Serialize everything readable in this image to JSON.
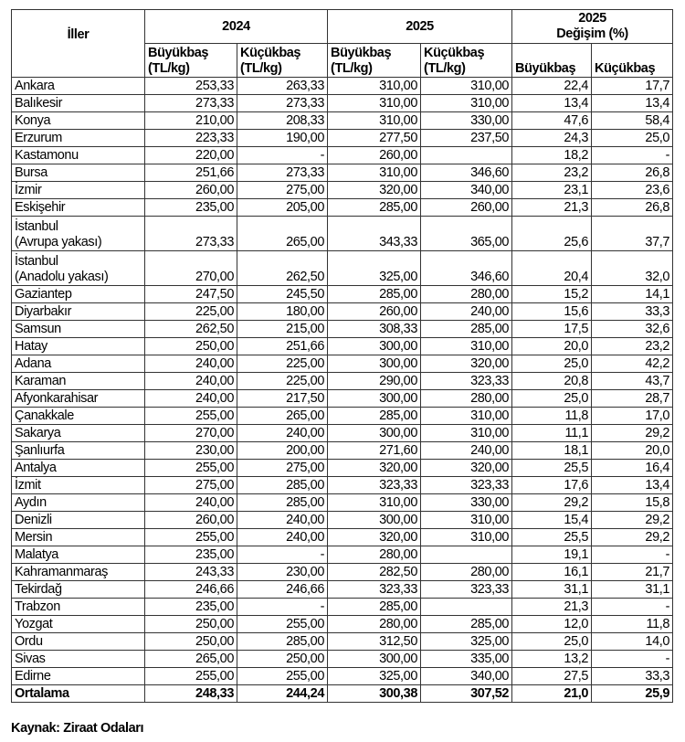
{
  "header": {
    "col_province": "İller",
    "group_2024": "2024",
    "group_2025": "2025",
    "group_change_line1": "2025",
    "group_change_line2": "Değişim (%)",
    "sub_cattle_2024": "Büyükbaş (TL/kg)",
    "sub_sheep_2024": "Küçükbaş (TL/kg)",
    "sub_cattle_2025": "Büyükbaş (TL/kg)",
    "sub_sheep_2025": "Küçükbaş (TL/kg)",
    "sub_cattle_change": "Büyükbaş",
    "sub_sheep_change": "Küçükbaş"
  },
  "rows": [
    [
      "Ankara",
      "253,33",
      "263,33",
      "310,00",
      "310,00",
      "22,4",
      "17,7"
    ],
    [
      "Balıkesir",
      "273,33",
      "273,33",
      "310,00",
      "310,00",
      "13,4",
      "13,4"
    ],
    [
      "Konya",
      "210,00",
      "208,33",
      "310,00",
      "330,00",
      "47,6",
      "58,4"
    ],
    [
      "Erzurum",
      "223,33",
      "190,00",
      "277,50",
      "237,50",
      "24,3",
      "25,0"
    ],
    [
      "Kastamonu",
      "220,00",
      "-",
      "260,00",
      "",
      "18,2",
      "-"
    ],
    [
      "Bursa",
      "251,66",
      "273,33",
      "310,00",
      "346,60",
      "23,2",
      "26,8"
    ],
    [
      "İzmir",
      "260,00",
      "275,00",
      "320,00",
      "340,00",
      "23,1",
      "23,6"
    ],
    [
      "Eskişehir",
      "235,00",
      "205,00",
      "285,00",
      "260,00",
      "21,3",
      "26,8"
    ],
    [
      "İstanbul (Avrupa yakası)",
      "273,33",
      "265,00",
      "343,33",
      "365,00",
      "25,6",
      "37,7"
    ],
    [
      "İstanbul (Anadolu yakası)",
      "270,00",
      "262,50",
      "325,00",
      "346,60",
      "20,4",
      "32,0"
    ],
    [
      "Gaziantep",
      "247,50",
      "245,50",
      "285,00",
      "280,00",
      "15,2",
      "14,1"
    ],
    [
      "Diyarbakır",
      "225,00",
      "180,00",
      "260,00",
      "240,00",
      "15,6",
      "33,3"
    ],
    [
      "Samsun",
      "262,50",
      "215,00",
      "308,33",
      "285,00",
      "17,5",
      "32,6"
    ],
    [
      "Hatay",
      "250,00",
      "251,66",
      "300,00",
      "310,00",
      "20,0",
      "23,2"
    ],
    [
      "Adana",
      "240,00",
      "225,00",
      "300,00",
      "320,00",
      "25,0",
      "42,2"
    ],
    [
      "Karaman",
      "240,00",
      "225,00",
      "290,00",
      "323,33",
      "20,8",
      "43,7"
    ],
    [
      "Afyonkarahisar",
      "240,00",
      "217,50",
      "300,00",
      "280,00",
      "25,0",
      "28,7"
    ],
    [
      "Çanakkale",
      "255,00",
      "265,00",
      "285,00",
      "310,00",
      "11,8",
      "17,0"
    ],
    [
      "Sakarya",
      "270,00",
      "240,00",
      "300,00",
      "310,00",
      "11,1",
      "29,2"
    ],
    [
      "Şanlıurfa",
      "230,00",
      "200,00",
      "271,60",
      "240,00",
      "18,1",
      "20,0"
    ],
    [
      "Antalya",
      "255,00",
      "275,00",
      "320,00",
      "320,00",
      "25,5",
      "16,4"
    ],
    [
      "İzmit",
      "275,00",
      "285,00",
      "323,33",
      "323,33",
      "17,6",
      "13,4"
    ],
    [
      "Aydın",
      "240,00",
      "285,00",
      "310,00",
      "330,00",
      "29,2",
      "15,8"
    ],
    [
      "Denizli",
      "260,00",
      "240,00",
      "300,00",
      "310,00",
      "15,4",
      "29,2"
    ],
    [
      "Mersin",
      "255,00",
      "240,00",
      "320,00",
      "310,00",
      "25,5",
      "29,2"
    ],
    [
      "Malatya",
      "235,00",
      "-",
      "280,00",
      "",
      "19,1",
      "-"
    ],
    [
      "Kahramanmaraş",
      "243,33",
      "230,00",
      "282,50",
      "280,00",
      "16,1",
      "21,7"
    ],
    [
      "Tekirdağ",
      "246,66",
      "246,66",
      "323,33",
      "323,33",
      "31,1",
      "31,1"
    ],
    [
      "Trabzon",
      "235,00",
      "-",
      "285,00",
      "",
      "21,3",
      "-"
    ],
    [
      "Yozgat",
      "250,00",
      "255,00",
      "280,00",
      "285,00",
      "12,0",
      "11,8"
    ],
    [
      "Ordu",
      "250,00",
      "285,00",
      "312,50",
      "325,00",
      "25,0",
      "14,0"
    ],
    [
      "Sivas",
      "265,00",
      "250,00",
      "300,00",
      "335,00",
      "13,2",
      "-"
    ],
    [
      "Edirne",
      "255,00",
      "255,00",
      "325,00",
      "340,00",
      "27,5",
      "33,3"
    ]
  ],
  "average": [
    "Ortalama",
    "248,33",
    "244,24",
    "300,38",
    "307,52",
    "21,0",
    "25,9"
  ],
  "source": "Kaynak: Ziraat Odaları"
}
